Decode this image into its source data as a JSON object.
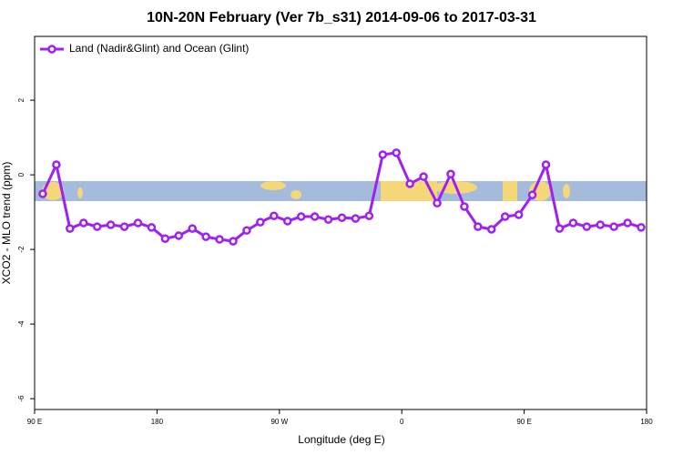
{
  "chart_data": {
    "type": "line",
    "title": "10N-20N February (Ver 7b_s31)   2014-09-06 to 2017-03-31",
    "x_label": "Longitude (deg E)",
    "y_label": "XCO2 - MLO trend (ppm)",
    "legend_position": "top-left",
    "x": [
      96,
      106,
      116,
      126,
      136,
      146,
      156,
      166,
      176,
      186,
      196,
      206,
      216,
      226,
      236,
      246,
      256,
      266,
      276,
      286,
      296,
      306,
      316,
      326,
      336,
      346,
      356,
      366,
      376,
      386,
      396,
      406,
      416,
      426,
      436,
      446,
      456,
      466,
      476,
      486,
      496,
      506,
      516,
      526,
      536
    ],
    "series": [
      {
        "name": "Land (Nadir&Glint) and Ocean (Glint)",
        "color": "#a020f0",
        "values": [
          -0.51,
          0.27,
          -1.44,
          -1.29,
          -1.39,
          -1.34,
          -1.39,
          -1.29,
          -1.41,
          -1.71,
          -1.63,
          -1.44,
          -1.66,
          -1.73,
          -1.78,
          -1.49,
          -1.27,
          -1.1,
          -1.24,
          -1.12,
          -1.12,
          -1.2,
          -1.15,
          -1.17,
          -1.1,
          0.54,
          0.59,
          -0.24,
          -0.05,
          -0.76,
          0.02,
          -0.85,
          -1.39,
          -1.46,
          -1.12,
          -1.07,
          -0.54,
          0.27,
          -1.44,
          -1.29,
          -1.39,
          -1.34,
          -1.39,
          -1.29,
          -1.41
        ]
      }
    ],
    "xlim": [
      90,
      540
    ],
    "xticks": [
      {
        "value": 90,
        "label": "90 E"
      },
      {
        "value": 180,
        "label": "180"
      },
      {
        "value": 270,
        "label": "90 W"
      },
      {
        "value": 360,
        "label": "0"
      },
      {
        "value": 450,
        "label": "90 E"
      },
      {
        "value": 540,
        "label": "180"
      }
    ],
    "ylim": [
      -6.29,
      3.71
    ],
    "yticks": [
      -6,
      -4,
      -2,
      0,
      2
    ]
  }
}
